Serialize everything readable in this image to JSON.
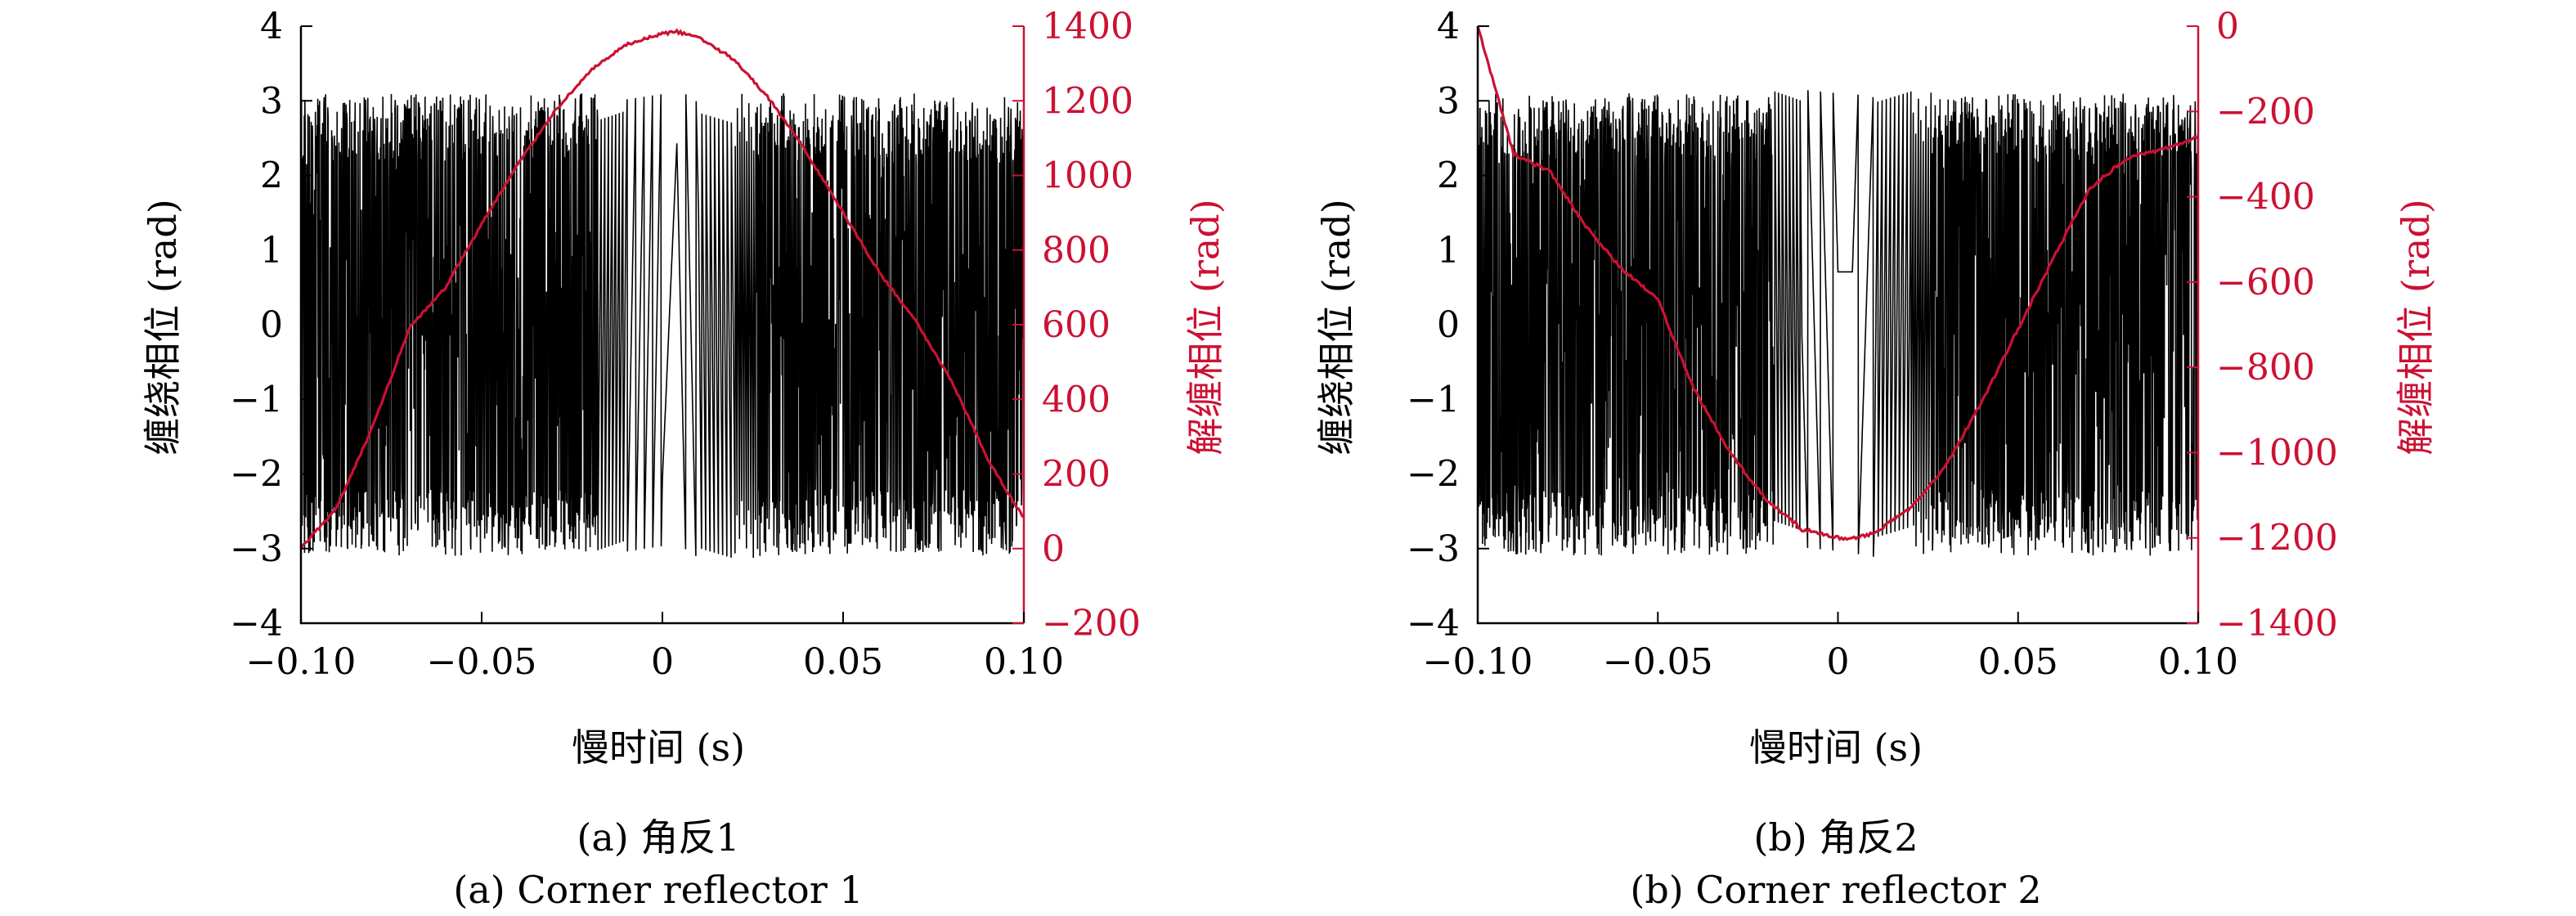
{
  "colors": {
    "wrapped": "#000000",
    "unwrapped": "#cc1133",
    "axis": "#000000"
  },
  "chart_data": [
    {
      "type": "line",
      "xlabel": "慢时间 (s)",
      "ylabel": "缠绕相位 (rad)",
      "y2label": "解缠相位 (rad)",
      "xlim": [
        -0.1,
        0.1
      ],
      "ylim": [
        -4,
        4
      ],
      "y2lim": [
        -200,
        1400
      ],
      "xticks": [
        "−0.10",
        "−0.05",
        "0",
        "0.05",
        "0.10"
      ],
      "xtick_values": [
        -0.1,
        -0.05,
        0,
        0.05,
        0.1
      ],
      "yticks": [
        "−4",
        "−3",
        "−2",
        "−1",
        "0",
        "1",
        "2",
        "3",
        "4"
      ],
      "ytick_values": [
        -4,
        -3,
        -2,
        -1,
        0,
        1,
        2,
        3,
        4
      ],
      "y2ticks": [
        "−200",
        "0",
        "200",
        "400",
        "600",
        "800",
        "1000",
        "1200",
        "1400"
      ],
      "y2tick_values": [
        -200,
        0,
        200,
        400,
        600,
        800,
        1000,
        1200,
        1400
      ],
      "caption_cn": "(a) 角反1",
      "caption_en": "(a) Corner reflector 1",
      "series": [
        {
          "axis": "left",
          "kind": "wrapped phase",
          "x": [
            -0.1,
            -0.05,
            0,
            0.004,
            0.05,
            0.1
          ],
          "y": [
            -3.1,
            3.1,
            2.8,
            3.1,
            -3.1,
            3.1
          ]
        },
        {
          "axis": "right",
          "kind": "unwrapped phase",
          "x": [
            -0.1,
            -0.09,
            -0.08,
            -0.07,
            -0.06,
            -0.05,
            -0.04,
            -0.03,
            -0.02,
            -0.01,
            0.0,
            0.004,
            0.01,
            0.02,
            0.03,
            0.04,
            0.05,
            0.06,
            0.07,
            0.08,
            0.09,
            0.1
          ],
          "y": [
            0,
            110,
            330,
            590,
            700,
            870,
            1030,
            1170,
            1280,
            1350,
            1380,
            1385,
            1370,
            1310,
            1200,
            1060,
            900,
            740,
            610,
            450,
            240,
            80
          ]
        }
      ]
    },
    {
      "type": "line",
      "xlabel": "慢时间 (s)",
      "ylabel": "缠绕相位 (rad)",
      "y2label": "解缠相位 (rad)",
      "xlim": [
        -0.1,
        0.1
      ],
      "ylim": [
        -4,
        4
      ],
      "y2lim": [
        -1400,
        0
      ],
      "xticks": [
        "−0.10",
        "−0.05",
        "0",
        "0.05",
        "0.10"
      ],
      "xtick_values": [
        -0.1,
        -0.05,
        0,
        0.05,
        0.1
      ],
      "yticks": [
        "−4",
        "−3",
        "−2",
        "−1",
        "0",
        "1",
        "2",
        "3",
        "4"
      ],
      "ytick_values": [
        -4,
        -3,
        -2,
        -1,
        0,
        1,
        2,
        3,
        4
      ],
      "y2ticks": [
        "−1400",
        "−1200",
        "−1000",
        "−800",
        "−600",
        "−400",
        "−200",
        "0"
      ],
      "y2tick_values": [
        -1400,
        -1200,
        -1000,
        -800,
        -600,
        -400,
        -200,
        0
      ],
      "caption_cn": "(b) 角反2",
      "caption_en": "(b) Corner reflector 2",
      "series": [
        {
          "axis": "left",
          "kind": "wrapped phase",
          "x": [
            -0.1,
            -0.05,
            0,
            0.004,
            0.05,
            0.1
          ],
          "y": [
            -3.1,
            3.1,
            -1.0,
            -1.2,
            -3.1,
            3.1
          ]
        },
        {
          "axis": "right",
          "kind": "unwrapped phase",
          "x": [
            -0.1,
            -0.09,
            -0.08,
            -0.07,
            -0.06,
            -0.05,
            -0.04,
            -0.03,
            -0.02,
            -0.01,
            0.0,
            0.004,
            0.01,
            0.02,
            0.03,
            0.04,
            0.05,
            0.06,
            0.07,
            0.08,
            0.09,
            0.1
          ],
          "y": [
            0,
            -300,
            -340,
            -470,
            -570,
            -640,
            -850,
            -1000,
            -1110,
            -1180,
            -1200,
            -1200,
            -1190,
            -1130,
            -1030,
            -880,
            -710,
            -540,
            -380,
            -310,
            -290,
            -260
          ]
        }
      ]
    }
  ]
}
